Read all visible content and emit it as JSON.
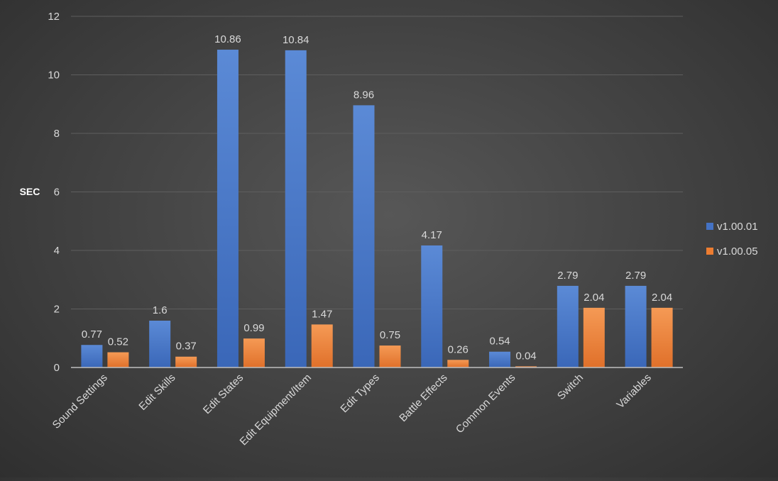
{
  "chart_data": {
    "type": "bar",
    "title": "",
    "xlabel": "",
    "ylabel": "SEC",
    "ylim": [
      0,
      12
    ],
    "yticks": [
      0,
      2,
      4,
      6,
      8,
      10,
      12
    ],
    "grid": true,
    "legend_position": "right",
    "categories": [
      "Sound Settings",
      "Edit Skills",
      "Edit States",
      "Edit Equipment/Item",
      "Edit Types",
      "Battle Effects",
      "Common Events",
      "Switch",
      "Variables"
    ],
    "series": [
      {
        "name": "v1.00.01",
        "color": "#4472C4",
        "values": [
          0.77,
          1.6,
          10.86,
          10.84,
          8.96,
          4.17,
          0.54,
          2.79,
          2.79
        ],
        "labels": [
          "0.77",
          "1.6",
          "10.86",
          "10.84",
          "8.96",
          "4.17",
          "0.54",
          "2.79",
          "2.79"
        ]
      },
      {
        "name": "v1.00.05",
        "color": "#ED7D31",
        "values": [
          0.52,
          0.37,
          0.99,
          1.47,
          0.75,
          0.26,
          0.04,
          2.04,
          2.04
        ],
        "labels": [
          "0.52",
          "0.37",
          "0.99",
          "1.47",
          "0.75",
          "0.26",
          "0.04",
          "2.04",
          "2.04"
        ]
      }
    ],
    "colors": {
      "grid": "#5e5e5e",
      "axis": "#bfbfbf",
      "text": "#d9d9d9"
    }
  }
}
